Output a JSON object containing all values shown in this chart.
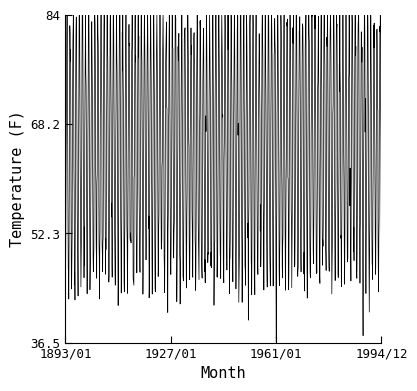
{
  "title": "",
  "xlabel": "Month",
  "ylabel": "Temperature (F)",
  "xlim_start_year": 1893,
  "xlim_start_month": 1,
  "xlim_end_year": 1994,
  "xlim_end_month": 12,
  "ylim": [
    36.5,
    84.0
  ],
  "yticks": [
    36.5,
    52.3,
    68.2,
    84.0
  ],
  "ytick_labels": [
    "36.5",
    "52.3",
    "68.2",
    "84"
  ],
  "xtick_labels": [
    "1893/01",
    "1927/01",
    "1961/01",
    "1994/12"
  ],
  "xtick_years": [
    1893,
    1927,
    1961,
    1994
  ],
  "xtick_months": [
    1,
    1,
    1,
    12
  ],
  "line_color": "#000000",
  "line_width": 0.5,
  "bg_color": "#ffffff",
  "mean_temp": 65.0,
  "seasonal_amplitude": 19.0,
  "noise_std": 3.0
}
